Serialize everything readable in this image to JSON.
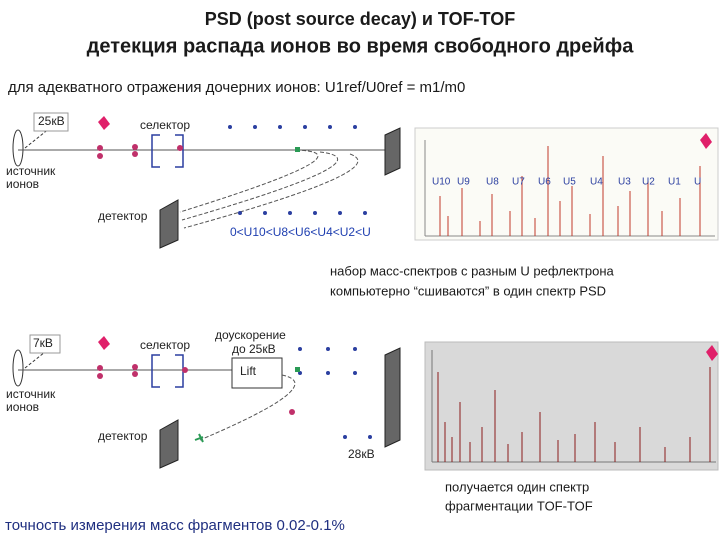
{
  "title": {
    "line1": "PSD (post source decay) и TOF-TOF",
    "line2": "детекция распада ионов во время свободного дрейфа"
  },
  "subtitle": "для адекватного отражения дочерних ионов:  U1ref/U0ref = m1/m0",
  "psd_diagram": {
    "voltage": "25кВ",
    "selector": "селектор",
    "source": [
      "источник",
      "ионов"
    ],
    "detector": "детектор",
    "reflectron": "0<U10<U8<U6<U4<U2<U"
  },
  "psd_spectrum": {
    "labels": [
      "U10",
      "U9",
      "U8",
      "U7",
      "U6",
      "U5",
      "U4",
      "U3",
      "U2",
      "U1",
      "U"
    ]
  },
  "note1": [
    "набор масс-спектров с разным U рефлектрона",
    "компьютерно “сшиваются” в один спектр PSD"
  ],
  "tof_diagram": {
    "voltage": "7кВ",
    "selector": "селектор",
    "post_acceleration": [
      "доускорение",
      "до 25кВ"
    ],
    "lift": "Lift",
    "source": [
      "источник",
      "ионов"
    ],
    "detector": "детектор",
    "end_voltage": "28кВ"
  },
  "note2": [
    "получается один спектр",
    "фрагментации TOF-TOF"
  ],
  "footer": "точность измерения масс фрагментов 0.02-0.1%"
}
